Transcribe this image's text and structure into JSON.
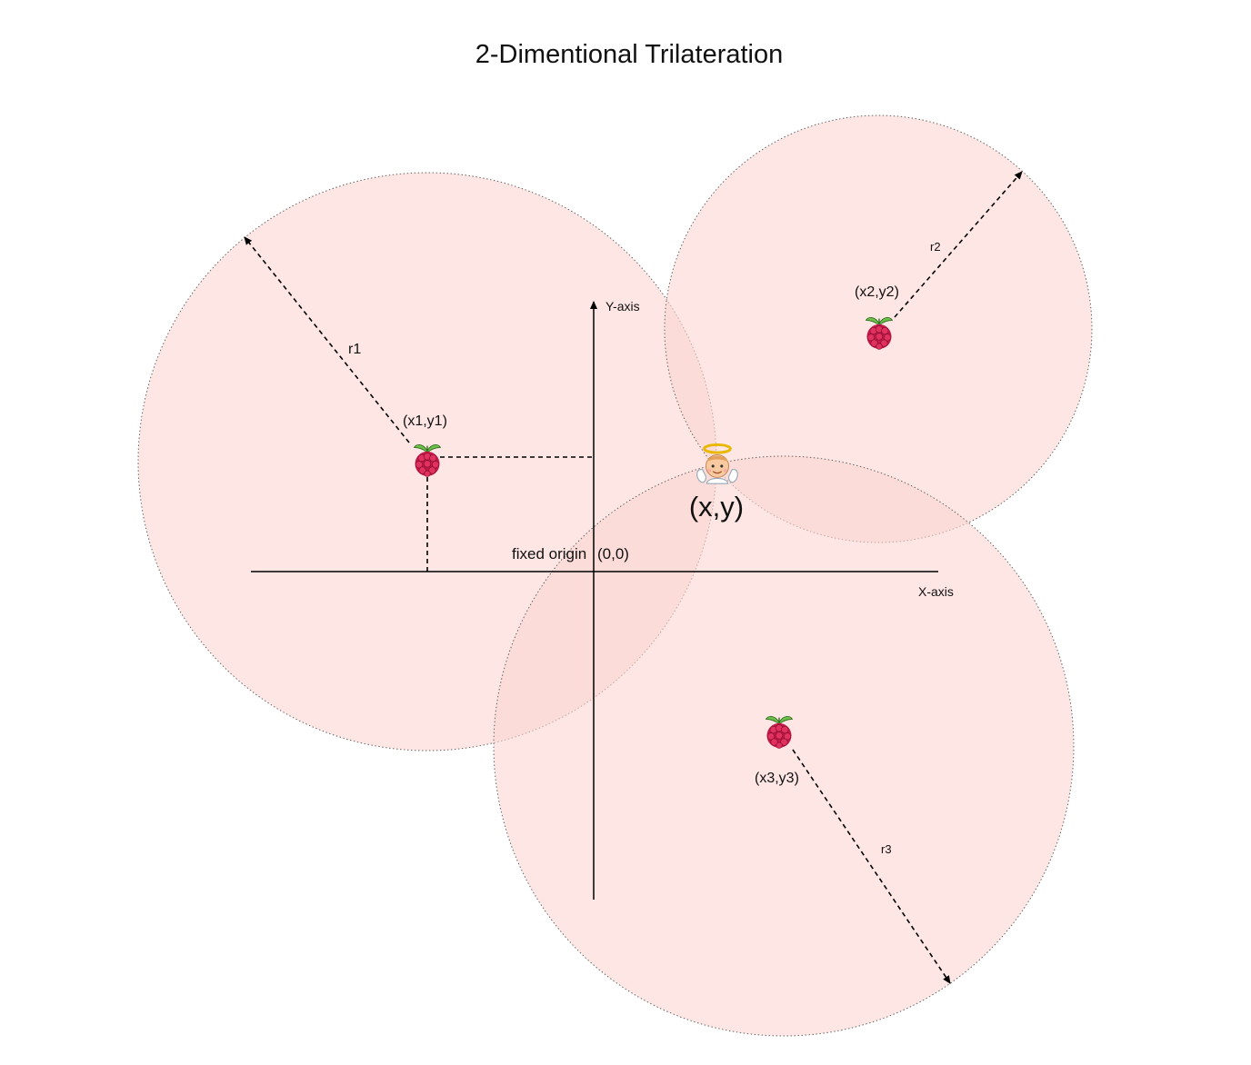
{
  "title": "2-Dimentional Trilateration",
  "axes": {
    "x_label": "X-axis",
    "y_label": "Y-axis",
    "origin_label": "fixed origin",
    "origin_coords": "(0,0)"
  },
  "anchors": [
    {
      "label": "(x1,y1)",
      "radius_label": "r1",
      "icon": "raspberry-pi-icon"
    },
    {
      "label": "(x2,y2)",
      "radius_label": "r2",
      "icon": "raspberry-pi-icon"
    },
    {
      "label": "(x3,y3)",
      "radius_label": "r3",
      "icon": "raspberry-pi-icon"
    }
  ],
  "target": {
    "label": "(x,y)",
    "icon": "angel-icon"
  },
  "colors": {
    "circle_fill": "#fbd6d0",
    "circle_stroke": "#666666",
    "line": "#000000",
    "raspberry": "#c51a4a",
    "leaf": "#6cc04a"
  }
}
